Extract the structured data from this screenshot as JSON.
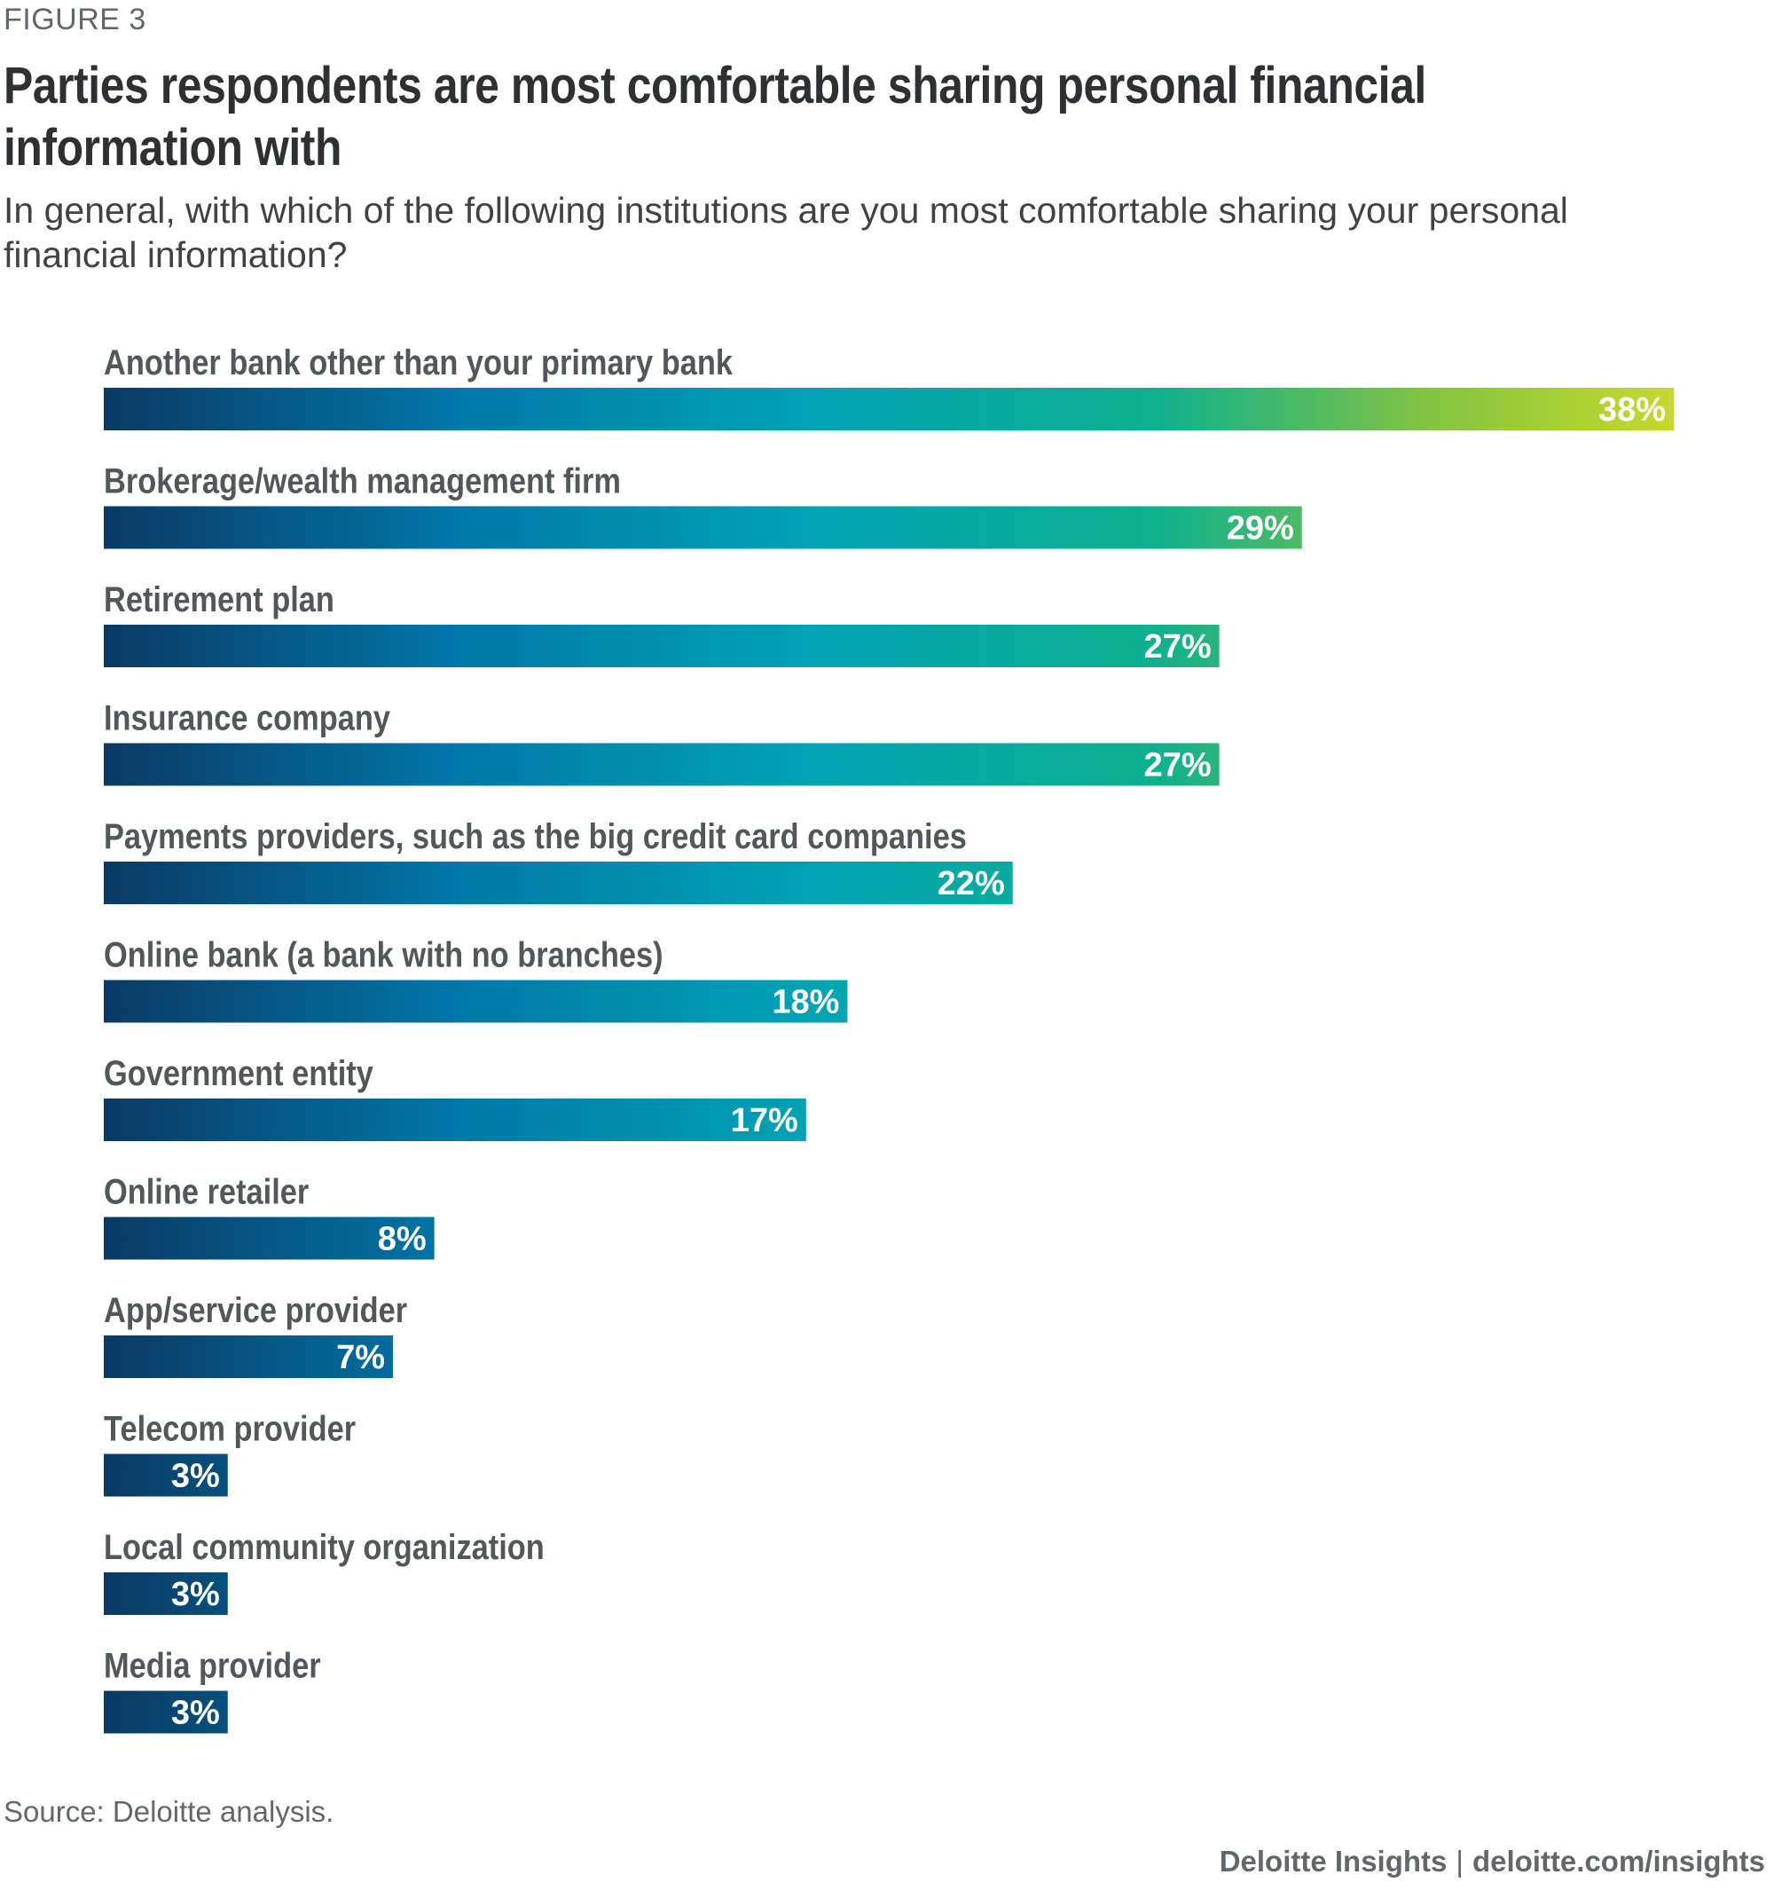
{
  "figure_label": "FIGURE 3",
  "title": "Parties respondents are most comfortable sharing personal financial information with",
  "subtitle": "In general, with which of the following institutions are you most comfortable sharing your personal financial information?",
  "source": "Source: Deloitte analysis.",
  "footer": {
    "brand": "Deloitte Insights",
    "separator": "|",
    "url": "deloitte.com/insights"
  },
  "colors": {
    "gradient_start": "#0b3a63",
    "gradient_blue": "#0076a8",
    "gradient_teal": "#00a3b4",
    "gradient_green": "#0fb08e",
    "gradient_lime": "#86c440",
    "gradient_end": "#c5d92d",
    "label_text": "#53565a",
    "value_text": "#ffffff"
  },
  "chart_data": {
    "type": "bar",
    "orientation": "horizontal",
    "title": "Parties respondents are most comfortable sharing personal financial information with",
    "xlabel": "",
    "ylabel": "",
    "xlim": [
      0,
      38
    ],
    "grid": false,
    "value_suffix": "%",
    "categories": [
      "Another bank other than your primary bank",
      "Brokerage/wealth management firm",
      "Retirement plan",
      "Insurance company",
      "Payments providers, such as the big credit card companies",
      "Online bank (a bank with no branches)",
      "Government entity",
      "Online retailer",
      "App/service provider",
      "Telecom provider",
      "Local community organization",
      "Media provider"
    ],
    "values": [
      38,
      29,
      27,
      27,
      22,
      18,
      17,
      8,
      7,
      3,
      3,
      3
    ],
    "value_labels": [
      "38%",
      "29%",
      "27%",
      "27%",
      "22%",
      "18%",
      "17%",
      "8%",
      "7%",
      "3%",
      "3%",
      "3%"
    ]
  }
}
